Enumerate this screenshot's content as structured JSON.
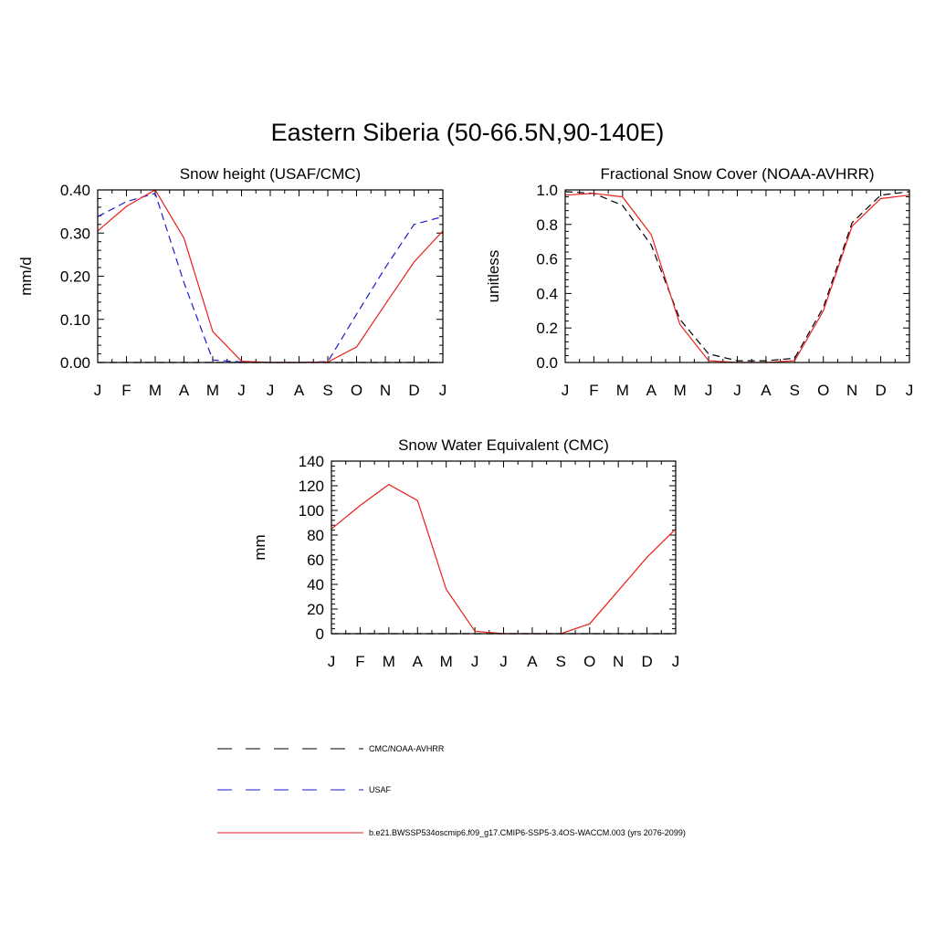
{
  "title": "Eastern Siberia (50-66.5N,90-140E)",
  "month_labels": [
    "J",
    "F",
    "M",
    "A",
    "M",
    "J",
    "J",
    "A",
    "S",
    "O",
    "N",
    "D",
    "J"
  ],
  "colors": {
    "obs": "#000000",
    "usaf": "#1a1acc",
    "model": "#e8201c"
  },
  "legend": [
    {
      "key": "obs",
      "label": "CMC/NOAA-AVHRR",
      "style": "dash-long"
    },
    {
      "key": "usaf",
      "label": "USAF",
      "style": "dash-long"
    },
    {
      "key": "model",
      "label": "b.e21.BWSSP534oscmip6.f09_g17.CMIP6-SSP5-3.4OS-WACCM.003 (yrs 2076-2099)",
      "style": "solid"
    }
  ],
  "chart_data": [
    {
      "type": "line",
      "title": "Snow height (USAF/CMC)",
      "ylabel": "mm/d",
      "ylim": [
        0,
        0.4
      ],
      "yticks": [
        0,
        0.1,
        0.2,
        0.3,
        0.4
      ],
      "ytick_labels": [
        "0.00",
        "0.10",
        "0.20",
        "0.30",
        "0.40"
      ],
      "x": [
        "J",
        "F",
        "M",
        "A",
        "M",
        "J",
        "J",
        "A",
        "S",
        "O",
        "N",
        "D",
        "J"
      ],
      "series": [
        {
          "key": "obs",
          "dash": "8,5",
          "values": [
            0,
            0,
            0,
            0,
            0,
            0,
            0,
            0,
            0,
            0,
            0,
            0,
            0
          ]
        },
        {
          "key": "usaf",
          "dash": "8,5",
          "values": [
            0.338,
            0.373,
            0.392,
            0.185,
            0.006,
            0.001,
            0.0,
            0.0,
            0.002,
            0.112,
            0.22,
            0.32,
            0.338
          ]
        },
        {
          "key": "model",
          "dash": "",
          "values": [
            0.305,
            0.362,
            0.4,
            0.288,
            0.072,
            0.003,
            0.0,
            0.0,
            0.001,
            0.036,
            0.135,
            0.233,
            0.305
          ]
        }
      ]
    },
    {
      "type": "line",
      "title": "Fractional Snow Cover (NOAA-AVHRR)",
      "ylabel": "unitless",
      "ylim": [
        0,
        1.0
      ],
      "yticks": [
        0,
        0.2,
        0.4,
        0.6,
        0.8,
        1.0
      ],
      "ytick_labels": [
        "0.0",
        "0.2",
        "0.4",
        "0.6",
        "0.8",
        "1.0"
      ],
      "x": [
        "J",
        "F",
        "M",
        "A",
        "M",
        "J",
        "J",
        "A",
        "S",
        "O",
        "N",
        "D",
        "J"
      ],
      "series": [
        {
          "key": "obs",
          "dash": "8,5",
          "values": [
            0.99,
            0.98,
            0.91,
            0.68,
            0.25,
            0.05,
            0.01,
            0.01,
            0.025,
            0.32,
            0.81,
            0.97,
            0.99
          ]
        },
        {
          "key": "model",
          "dash": "",
          "values": [
            0.97,
            0.98,
            0.96,
            0.74,
            0.22,
            0.01,
            0.0,
            0.0,
            0.01,
            0.3,
            0.79,
            0.95,
            0.97
          ]
        }
      ]
    },
    {
      "type": "line",
      "title": "Snow Water Equivalent (CMC)",
      "ylabel": "mm",
      "ylim": [
        0,
        140
      ],
      "yticks": [
        0,
        20,
        40,
        60,
        80,
        100,
        120,
        140
      ],
      "ytick_labels": [
        "0",
        "20",
        "40",
        "60",
        "80",
        "100",
        "120",
        "140"
      ],
      "x": [
        "J",
        "F",
        "M",
        "A",
        "M",
        "J",
        "J",
        "A",
        "S",
        "O",
        "N",
        "D",
        "J"
      ],
      "series": [
        {
          "key": "obs",
          "dash": "8,5",
          "values": [
            0,
            0,
            0,
            0,
            0,
            0,
            0,
            0,
            0,
            0,
            0,
            0,
            0
          ]
        },
        {
          "key": "model",
          "dash": "",
          "values": [
            85,
            104,
            121,
            108,
            36,
            2,
            0,
            0,
            0,
            8,
            35,
            62,
            85
          ]
        }
      ]
    }
  ]
}
